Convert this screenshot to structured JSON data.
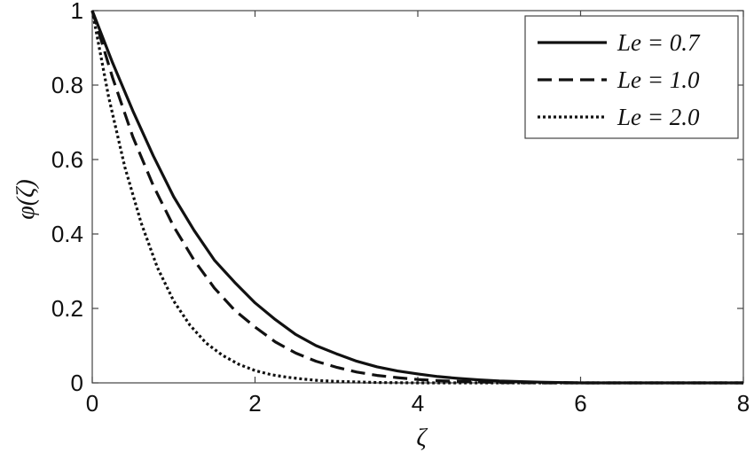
{
  "chart_data": {
    "type": "line",
    "xlabel": "ζ",
    "ylabel": "φ(ζ)",
    "xlim": [
      0,
      8
    ],
    "ylim": [
      0,
      1
    ],
    "xticks": [
      "0",
      "2",
      "4",
      "6",
      "8"
    ],
    "yticks": [
      "0",
      "0.2",
      "0.4",
      "0.6",
      "0.8",
      "1"
    ],
    "grid": false,
    "legend_position": "top-right",
    "series": [
      {
        "name": "Le = 0.7",
        "style": "solid",
        "x": [
          0,
          0.25,
          0.5,
          0.75,
          1.0,
          1.25,
          1.5,
          1.75,
          2.0,
          2.25,
          2.5,
          2.75,
          3.0,
          3.25,
          3.5,
          3.75,
          4.0,
          4.25,
          4.5,
          4.75,
          5.0,
          5.5,
          6.0,
          7.0,
          8.0
        ],
        "values": [
          1.0,
          0.86,
          0.73,
          0.61,
          0.5,
          0.41,
          0.33,
          0.27,
          0.215,
          0.17,
          0.13,
          0.1,
          0.078,
          0.058,
          0.043,
          0.032,
          0.024,
          0.017,
          0.012,
          0.008,
          0.005,
          0.002,
          0.0,
          0.0,
          0.0
        ]
      },
      {
        "name": "Le = 1.0",
        "style": "dashed",
        "x": [
          0,
          0.25,
          0.5,
          0.75,
          1.0,
          1.25,
          1.5,
          1.75,
          2.0,
          2.25,
          2.5,
          2.75,
          3.0,
          3.25,
          3.5,
          3.75,
          4.0,
          4.25,
          4.5,
          5.0,
          5.5,
          6.0,
          7.0,
          8.0
        ],
        "values": [
          1.0,
          0.82,
          0.66,
          0.53,
          0.42,
          0.33,
          0.255,
          0.195,
          0.15,
          0.11,
          0.08,
          0.058,
          0.042,
          0.029,
          0.02,
          0.014,
          0.009,
          0.006,
          0.004,
          0.001,
          0.0,
          0.0,
          0.0,
          0.0
        ]
      },
      {
        "name": "Le = 2.0",
        "style": "dotted",
        "x": [
          0,
          0.2,
          0.4,
          0.6,
          0.8,
          1.0,
          1.2,
          1.4,
          1.6,
          1.8,
          2.0,
          2.2,
          2.4,
          2.6,
          2.8,
          3.0,
          3.5,
          4.0,
          5.0,
          6.0,
          7.0,
          8.0
        ],
        "values": [
          1.0,
          0.77,
          0.58,
          0.43,
          0.31,
          0.22,
          0.155,
          0.107,
          0.074,
          0.05,
          0.033,
          0.022,
          0.015,
          0.01,
          0.006,
          0.004,
          0.001,
          0.0,
          0.0,
          0.0,
          0.0,
          0.0
        ]
      }
    ]
  }
}
